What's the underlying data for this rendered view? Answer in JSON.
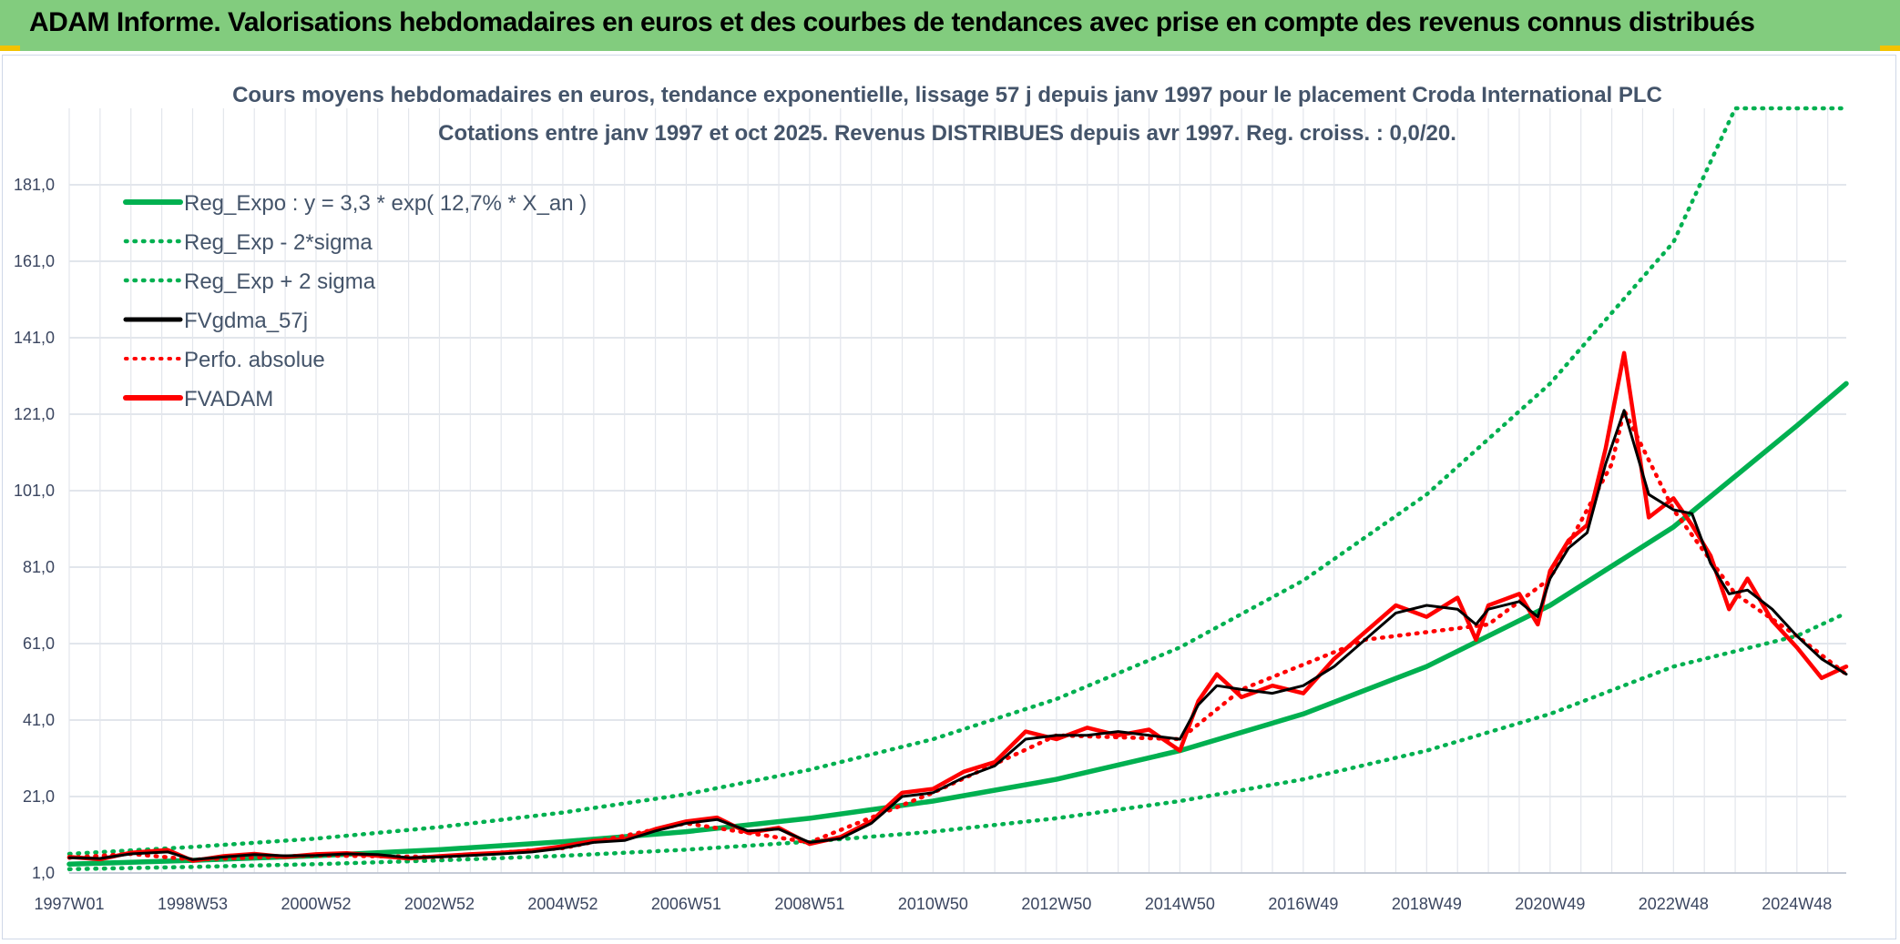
{
  "header": {
    "title": "ADAM Informe. Valorisations hebdomadaires en euros et des courbes de tendances avec prise en compte des revenus connus distribués"
  },
  "chart_data": {
    "type": "line",
    "title": "Cours moyens hebdomadaires en euros, tendance exponentielle, lissage 57 j depuis janv 1997 pour le placement Croda International PLC",
    "subtitle": "Cotations entre janv 1997 et oct 2025. Revenus DISTRIBUES depuis avr 1997. Reg. croiss. : 0,0/20.",
    "xlabel": "",
    "ylabel": "",
    "x_range": [
      1997.0,
      2025.8
    ],
    "ylim": [
      1.0,
      201.0
    ],
    "y_ticks": [
      "1,0",
      "21,0",
      "41,0",
      "61,0",
      "81,0",
      "101,0",
      "121,0",
      "141,0",
      "161,0",
      "181,0"
    ],
    "y_tick_values": [
      1,
      21,
      41,
      61,
      81,
      101,
      121,
      141,
      161,
      181
    ],
    "x_tick_labels": [
      "1997W01",
      "1998W53",
      "2000W52",
      "2002W52",
      "2004W52",
      "2006W51",
      "2008W51",
      "2010W50",
      "2012W50",
      "2014W50",
      "2016W49",
      "2018W49",
      "2020W49",
      "2022W48",
      "2024W48"
    ],
    "x_tick_values": [
      1997.0,
      1999.0,
      2001.0,
      2003.0,
      2005.0,
      2007.0,
      2009.0,
      2011.0,
      2013.0,
      2015.0,
      2017.0,
      2019.0,
      2021.0,
      2023.0,
      2025.0
    ],
    "grid": true,
    "legend_position": "top-left",
    "legend": [
      "Reg_Expo : y = 3,3 * exp( 12,7% *  X_an )",
      "Reg_Exp - 2*sigma",
      "Reg_Exp + 2 sigma",
      "FVgdma_57j",
      "Perfo. absolue",
      "FVADAM"
    ],
    "series": [
      {
        "name": "Reg_Expo : y = 3,3 * exp( 12,7% *  X_an )",
        "style": "solid",
        "color": "#00b050",
        "x": [
          1997.0,
          1999.0,
          2001.0,
          2003.0,
          2005.0,
          2007.0,
          2009.0,
          2011.0,
          2013.0,
          2015.0,
          2017.0,
          2019.0,
          2021.0,
          2023.0,
          2025.0,
          2025.8
        ],
        "values": [
          3.3,
          4.3,
          5.5,
          7.1,
          9.2,
          11.8,
          15.3,
          19.8,
          25.5,
          33.0,
          42.6,
          55.0,
          71.0,
          91.5,
          118.0,
          129.0
        ]
      },
      {
        "name": "Reg_Exp - 2*sigma",
        "style": "dotted",
        "color": "#00b050",
        "x": [
          1997.0,
          1999.0,
          2001.0,
          2003.0,
          2005.0,
          2007.0,
          2009.0,
          2011.0,
          2013.0,
          2015.0,
          2017.0,
          2019.0,
          2021.0,
          2023.0,
          2025.0,
          2025.8
        ],
        "values": [
          2.0,
          2.6,
          3.3,
          4.3,
          5.5,
          7.1,
          9.2,
          11.8,
          15.3,
          19.8,
          25.5,
          33.0,
          42.6,
          55.0,
          63.0,
          69.0
        ]
      },
      {
        "name": "Reg_Exp + 2 sigma",
        "style": "dotted",
        "color": "#00b050",
        "x": [
          1997.0,
          1999.0,
          2001.0,
          2003.0,
          2005.0,
          2007.0,
          2009.0,
          2011.0,
          2013.0,
          2015.0,
          2017.0,
          2019.0,
          2021.0,
          2023.0,
          2024.0,
          2025.8
        ],
        "values": [
          6.0,
          7.8,
          10.0,
          13.0,
          16.8,
          21.6,
          28.0,
          36.0,
          46.5,
          60.0,
          77.5,
          100.0,
          129.0,
          166.0,
          201.0,
          201.0
        ]
      },
      {
        "name": "FVgdma_57j",
        "style": "solid",
        "color": "#000000",
        "x": [
          1997.0,
          1997.5,
          1998.0,
          1998.6,
          1999.0,
          1999.5,
          2000.0,
          2000.5,
          2001.0,
          2001.5,
          2002.0,
          2002.5,
          2003.0,
          2003.5,
          2004.0,
          2004.5,
          2005.0,
          2005.5,
          2006.0,
          2006.5,
          2007.0,
          2007.5,
          2008.0,
          2008.5,
          2009.0,
          2009.5,
          2010.0,
          2010.5,
          2011.0,
          2011.5,
          2012.0,
          2012.5,
          2013.0,
          2013.5,
          2014.0,
          2014.5,
          2015.0,
          2015.3,
          2015.6,
          2016.0,
          2016.5,
          2017.0,
          2017.5,
          2018.0,
          2018.5,
          2019.0,
          2019.5,
          2019.8,
          2020.0,
          2020.5,
          2020.8,
          2021.0,
          2021.3,
          2021.6,
          2021.9,
          2022.2,
          2022.6,
          2023.0,
          2023.3,
          2023.6,
          2023.9,
          2024.2,
          2024.6,
          2025.0,
          2025.4,
          2025.8
        ],
        "values": [
          5.0,
          4.8,
          6.0,
          6.5,
          4.5,
          5.2,
          5.8,
          5.5,
          5.6,
          6.0,
          5.8,
          5.0,
          5.2,
          5.6,
          6.0,
          6.5,
          7.5,
          9.0,
          9.5,
          12.0,
          14.0,
          15.0,
          12.0,
          12.5,
          9.0,
          10.0,
          14.0,
          21.0,
          22.0,
          26.0,
          29.0,
          36.0,
          37.0,
          37.0,
          38.0,
          37.0,
          36.0,
          45.0,
          50.0,
          49.0,
          48.0,
          50.0,
          55.0,
          62.0,
          69.0,
          71.0,
          70.0,
          66.0,
          70.0,
          72.0,
          68.0,
          78.0,
          86.0,
          90.0,
          108.0,
          122.0,
          100.0,
          96.0,
          95.0,
          82.0,
          74.0,
          75.0,
          70.0,
          63.0,
          57.0,
          53.0
        ]
      },
      {
        "name": "Perfo. absolue",
        "style": "dotted",
        "color": "#ff0000",
        "x": [
          1997.0,
          1998.0,
          1999.0,
          2001.0,
          2003.0,
          2005.0,
          2007.0,
          2009.0,
          2011.0,
          2013.0,
          2015.0,
          2016.0,
          2018.0,
          2020.0,
          2021.0,
          2022.0,
          2022.2,
          2023.0,
          2024.0,
          2025.0,
          2025.8
        ],
        "values": [
          5.0,
          6.0,
          4.5,
          5.6,
          5.2,
          7.5,
          14.0,
          9.0,
          22.0,
          37.0,
          36.0,
          49.0,
          62.0,
          66.0,
          78.0,
          108.0,
          122.0,
          96.0,
          74.0,
          63.0,
          53.0
        ]
      },
      {
        "name": "FVADAM",
        "style": "solid",
        "color": "#ff0000",
        "x": [
          1997.0,
          1997.5,
          1998.0,
          1998.6,
          1999.0,
          1999.5,
          2000.0,
          2000.5,
          2001.0,
          2001.5,
          2002.0,
          2002.5,
          2003.0,
          2003.5,
          2004.0,
          2004.5,
          2005.0,
          2005.5,
          2006.0,
          2006.5,
          2007.0,
          2007.5,
          2008.0,
          2008.5,
          2009.0,
          2009.5,
          2010.0,
          2010.5,
          2011.0,
          2011.5,
          2012.0,
          2012.5,
          2013.0,
          2013.5,
          2014.0,
          2014.5,
          2015.0,
          2015.3,
          2015.6,
          2016.0,
          2016.5,
          2017.0,
          2017.5,
          2018.0,
          2018.5,
          2019.0,
          2019.5,
          2019.8,
          2020.0,
          2020.5,
          2020.8,
          2021.0,
          2021.3,
          2021.6,
          2021.9,
          2022.2,
          2022.6,
          2023.0,
          2023.3,
          2023.6,
          2023.9,
          2024.2,
          2024.6,
          2025.0,
          2025.4,
          2025.8
        ],
        "values": [
          5.2,
          4.6,
          6.3,
          7.0,
          4.2,
          5.4,
          6.0,
          5.2,
          5.9,
          6.2,
          5.5,
          4.8,
          5.4,
          5.9,
          6.3,
          6.9,
          8.0,
          9.4,
          9.8,
          12.5,
          14.5,
          15.5,
          11.5,
          12.8,
          8.6,
          10.4,
          14.6,
          22.0,
          23.0,
          27.5,
          30.0,
          38.0,
          36.0,
          39.0,
          37.0,
          38.5,
          33.0,
          46.0,
          53.0,
          47.0,
          50.0,
          48.0,
          57.0,
          64.0,
          71.0,
          68.0,
          73.0,
          62.0,
          71.0,
          74.0,
          66.0,
          80.0,
          88.0,
          92.0,
          112.0,
          137.0,
          94.0,
          99.0,
          92.0,
          84.0,
          70.0,
          78.0,
          67.0,
          60.0,
          52.0,
          55.0
        ]
      }
    ]
  }
}
